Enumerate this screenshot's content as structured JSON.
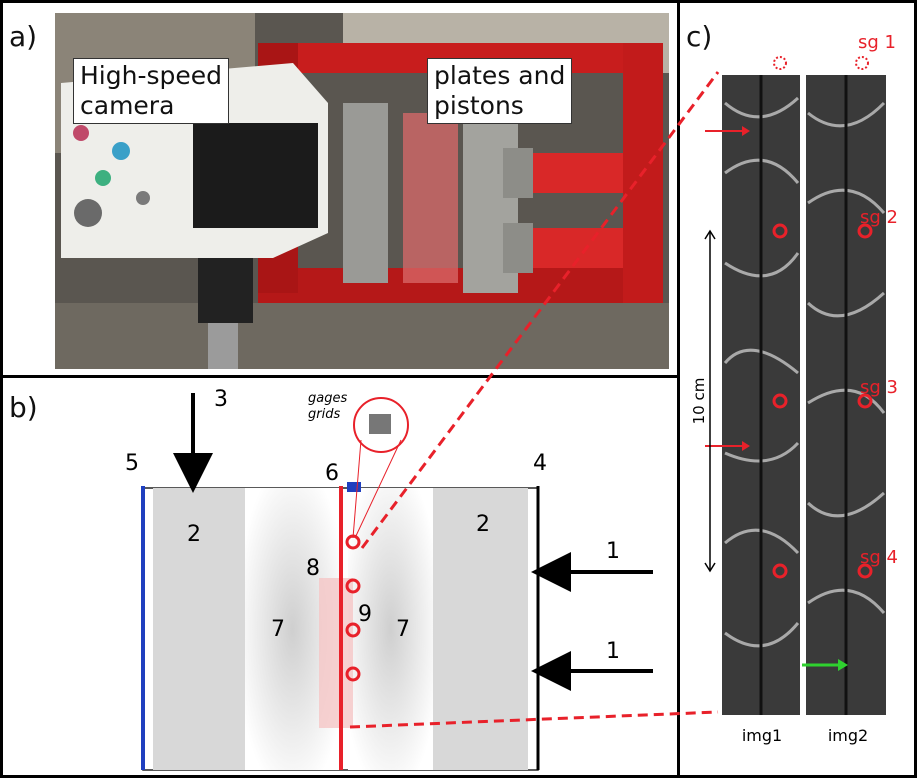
{
  "panel_a": {
    "label": "a)",
    "camera_label_line1": "High-speed",
    "camera_label_line2": "camera",
    "plates_label_line1": "plates and",
    "plates_label_line2": "pistons"
  },
  "panel_b": {
    "label": "b)",
    "num_1a": "1",
    "num_1b": "1",
    "num_2a": "2",
    "num_2b": "2",
    "num_3": "3",
    "num_4": "4",
    "num_5": "5",
    "num_6": "6",
    "num_7a": "7",
    "num_7b": "7",
    "num_8": "8",
    "num_9": "9",
    "inset_label_1": "gages",
    "inset_label_2": "grids"
  },
  "panel_c": {
    "label": "c)",
    "scale_bar": "10 cm",
    "img1": "img1",
    "img2": "img2",
    "sg1": "sg 1",
    "sg2": "sg 2",
    "sg3": "sg 3",
    "sg4": "sg 4"
  },
  "colors": {
    "red_annotation": "#e8212a",
    "blue_edge": "#1f3fbf",
    "green_arrow": "#2fd12f"
  }
}
